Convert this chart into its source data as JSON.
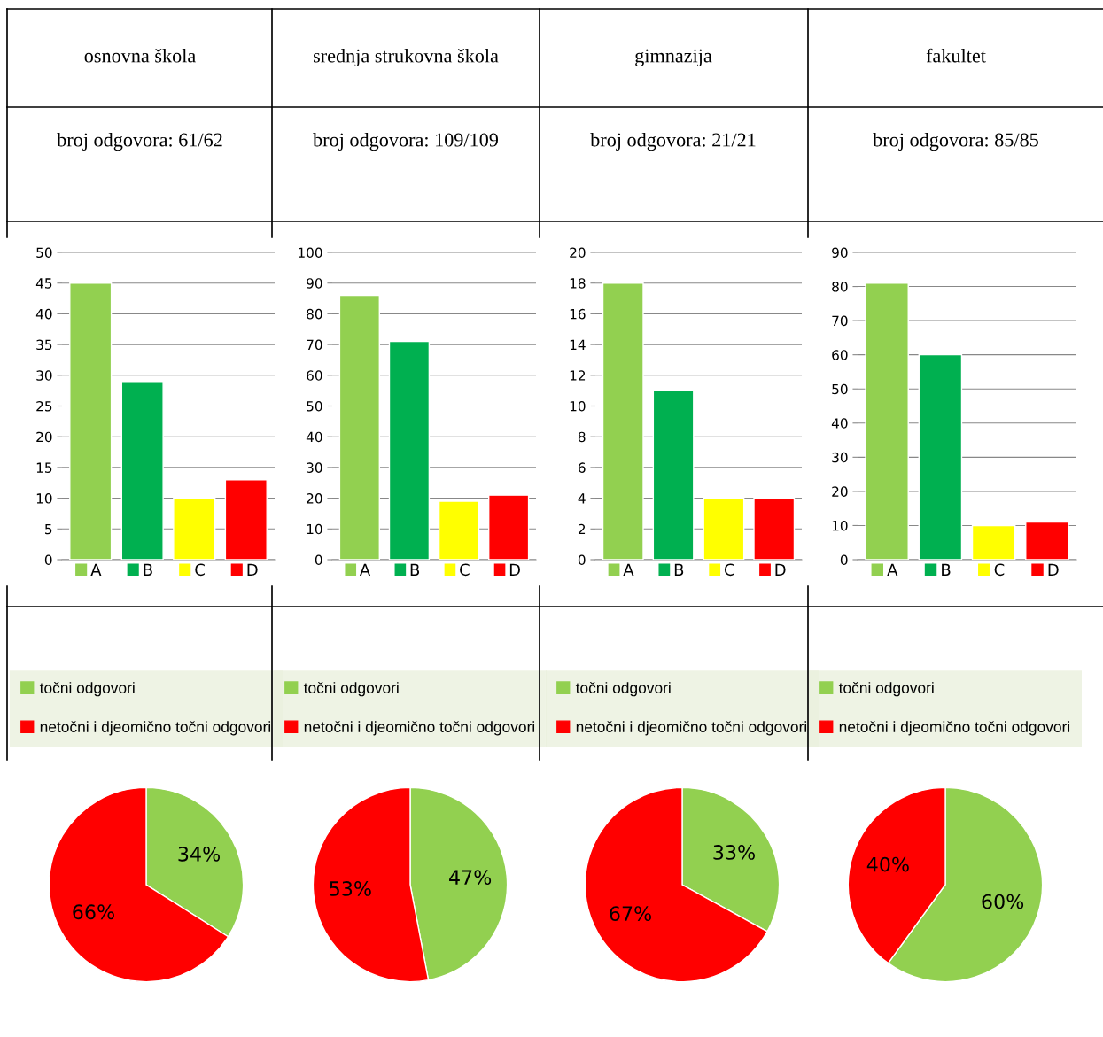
{
  "chart_data": [
    {
      "type": "bar",
      "title": "osnovna škola",
      "subtitle": "broj odgovora: 61/62",
      "categories": [
        "A",
        "B",
        "C",
        "D"
      ],
      "values": [
        45,
        29,
        10,
        13
      ],
      "colors": [
        "#92d050",
        "#00b050",
        "#ffff00",
        "#ff0000"
      ],
      "ylim": [
        0,
        50
      ],
      "yticks": [
        0,
        5,
        10,
        15,
        20,
        25,
        30,
        35,
        40,
        45,
        50
      ],
      "grid": "y"
    },
    {
      "type": "bar",
      "title": "srednja strukovna škola",
      "subtitle": "broj odgovora: 109/109",
      "categories": [
        "A",
        "B",
        "C",
        "D"
      ],
      "values": [
        86,
        71,
        19,
        21
      ],
      "colors": [
        "#92d050",
        "#00b050",
        "#ffff00",
        "#ff0000"
      ],
      "ylim": [
        0,
        100
      ],
      "yticks": [
        0,
        10,
        20,
        30,
        40,
        50,
        60,
        70,
        80,
        90,
        100
      ],
      "grid": "y"
    },
    {
      "type": "bar",
      "title": "gimnazija",
      "subtitle": "broj odgovora: 21/21",
      "categories": [
        "A",
        "B",
        "C",
        "D"
      ],
      "values": [
        18,
        11,
        4,
        4
      ],
      "colors": [
        "#92d050",
        "#00b050",
        "#ffff00",
        "#ff0000"
      ],
      "ylim": [
        0,
        20
      ],
      "yticks": [
        0,
        2,
        4,
        6,
        8,
        10,
        12,
        14,
        16,
        18,
        20
      ],
      "grid": "y"
    },
    {
      "type": "bar",
      "title": "fakultet",
      "subtitle": "broj odgovora: 85/85",
      "categories": [
        "A",
        "B",
        "C",
        "D"
      ],
      "values": [
        81,
        60,
        10,
        11
      ],
      "colors": [
        "#92d050",
        "#00b050",
        "#ffff00",
        "#ff0000"
      ],
      "ylim": [
        0,
        90
      ],
      "yticks": [
        0,
        10,
        20,
        30,
        40,
        50,
        60,
        70,
        80,
        90
      ],
      "grid": "y"
    },
    {
      "type": "pie",
      "categories": [
        "točni odgovori",
        "netočni i djeomično točni odgovori"
      ],
      "values": [
        34,
        66
      ],
      "colors": [
        "#92d050",
        "#ff0000"
      ],
      "value_labels": [
        "34%",
        "66%"
      ],
      "legend": "top"
    },
    {
      "type": "pie",
      "categories": [
        "točni odgovori",
        "netočni i djeomično točni odgovori"
      ],
      "values": [
        47,
        53
      ],
      "colors": [
        "#92d050",
        "#ff0000"
      ],
      "value_labels": [
        "47%",
        "53%"
      ],
      "legend": "top"
    },
    {
      "type": "pie",
      "categories": [
        "točni odgovori",
        "netočni i djeomično točni odgovori"
      ],
      "values": [
        33,
        67
      ],
      "colors": [
        "#92d050",
        "#ff0000"
      ],
      "value_labels": [
        "33%",
        "67%"
      ],
      "legend": "top"
    },
    {
      "type": "pie",
      "categories": [
        "točni odgovori",
        "netočni i djeomično točni odgovori"
      ],
      "values": [
        60,
        40
      ],
      "colors": [
        "#92d050",
        "#ff0000"
      ],
      "value_labels": [
        "60%",
        "40%"
      ],
      "legend": "top"
    }
  ]
}
